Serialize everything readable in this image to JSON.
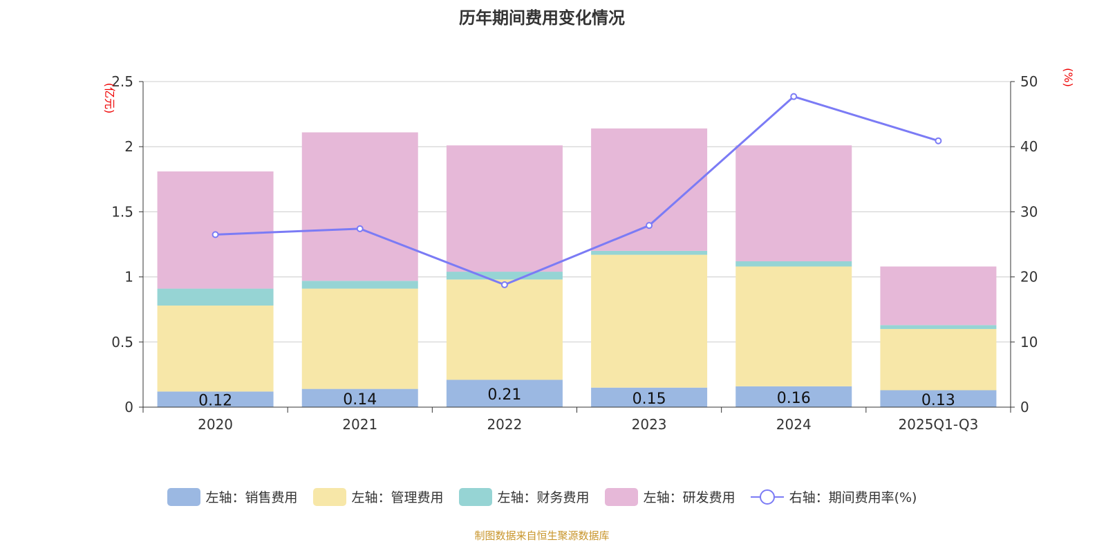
{
  "title": "历年期间费用变化情况",
  "source": "制图数据来自恒生聚源数据库",
  "chart_data": {
    "type": "bar",
    "stacked": true,
    "title": "历年期间费用变化情况",
    "categories": [
      "2020",
      "2021",
      "2022",
      "2023",
      "2024",
      "2025Q1-Q3"
    ],
    "left_axis": {
      "label": "(亿元)",
      "ylim": [
        0,
        2.5
      ],
      "ticks": [
        "0",
        "0.5",
        "1",
        "1.5",
        "2",
        "2.5"
      ]
    },
    "right_axis": {
      "label": "(%)",
      "ylim": [
        0,
        50
      ],
      "ticks": [
        "0",
        "10",
        "20",
        "30",
        "40",
        "50"
      ]
    },
    "series": [
      {
        "name": "左轴：销售费用",
        "color": "#9bb8e2",
        "values": [
          0.12,
          0.14,
          0.21,
          0.15,
          0.16,
          0.13
        ],
        "labels": [
          "0.12",
          "0.14",
          "0.21",
          "0.15",
          "0.16",
          "0.13"
        ]
      },
      {
        "name": "左轴：管理费用",
        "color": "#f7e7a8",
        "values": [
          0.66,
          0.77,
          0.77,
          1.02,
          0.92,
          0.47
        ]
      },
      {
        "name": "左轴：财务费用",
        "color": "#96d4d4",
        "values": [
          0.13,
          0.06,
          0.06,
          0.03,
          0.04,
          0.03
        ]
      },
      {
        "name": "左轴：研发费用",
        "color": "#e6b8d8",
        "values": [
          0.9,
          1.14,
          0.97,
          0.94,
          0.89,
          0.45
        ]
      }
    ],
    "line": {
      "name": "右轴：期间费用率(%)",
      "color": "#7b7bf5",
      "values": [
        26.5,
        27.4,
        18.8,
        27.9,
        47.7,
        40.9
      ]
    },
    "grid": true,
    "legend_position": "bottom"
  }
}
